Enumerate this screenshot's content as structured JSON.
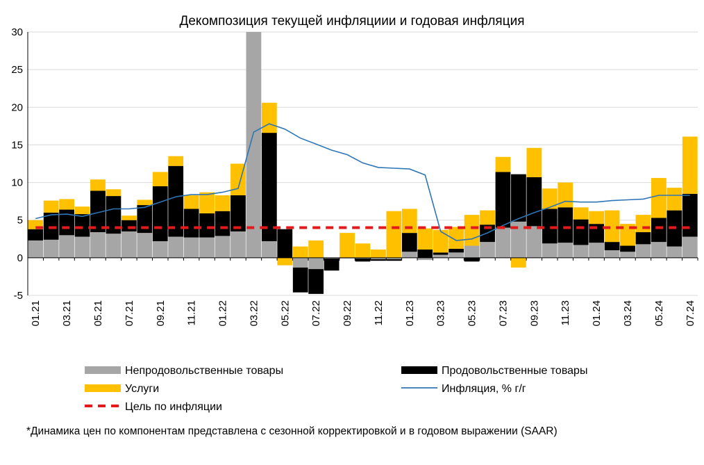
{
  "chart_data": {
    "type": "bar",
    "stacked": true,
    "title": "Декомпозиция текущей инфляциии и годовая инфляция",
    "footnote": "*Динамика цен по компонентам представлена с сезонной корректировкой и в годовом выражении (SAAR)",
    "ylim": [
      -5,
      30
    ],
    "yticks": [
      -5,
      0,
      5,
      10,
      15,
      20,
      25,
      30
    ],
    "grid": true,
    "legend_position": "bottom",
    "categories": [
      "01.21",
      "02.21",
      "03.21",
      "04.21",
      "05.21",
      "06.21",
      "07.21",
      "08.21",
      "09.21",
      "10.21",
      "11.21",
      "12.21",
      "01.22",
      "02.22",
      "03.22",
      "04.22",
      "05.22",
      "06.22",
      "07.22",
      "08.22",
      "09.22",
      "10.22",
      "11.22",
      "12.22",
      "01.23",
      "02.23",
      "03.23",
      "04.23",
      "05.23",
      "06.23",
      "07.23",
      "08.23",
      "09.23",
      "10.23",
      "11.23",
      "12.23",
      "01.24",
      "02.24",
      "03.24",
      "04.24",
      "05.24",
      "06.24",
      "07.24"
    ],
    "xtick_labels": [
      "01.21",
      "03.21",
      "05.21",
      "07.21",
      "09.21",
      "11.21",
      "01.22",
      "03.22",
      "05.22",
      "07.22",
      "09.22",
      "11.22",
      "01.23",
      "03.23",
      "05.23",
      "07.23",
      "09.23",
      "11.23",
      "01.24",
      "03.24",
      "05.24",
      "07.24"
    ],
    "series": [
      {
        "name": "Непродовольственные товары",
        "kind": "bar",
        "color": "#a6a6a6",
        "values": [
          2.3,
          2.4,
          3.0,
          2.8,
          3.4,
          3.2,
          3.5,
          3.3,
          2.2,
          2.8,
          2.7,
          2.7,
          2.9,
          3.5,
          30.0,
          2.2,
          0.0,
          -1.3,
          -1.5,
          -0.1,
          -0.1,
          -0.1,
          -0.2,
          -0.2,
          0.8,
          -0.3,
          0.4,
          0.7,
          1.6,
          2.1,
          4.0,
          4.8,
          4.2,
          1.9,
          2.0,
          1.7,
          2.0,
          1.0,
          0.8,
          1.8,
          2.1,
          1.5,
          2.8
        ]
      },
      {
        "name": "Продовольственные товары",
        "kind": "bar",
        "color": "#000000",
        "values": [
          1.5,
          3.6,
          3.4,
          3.0,
          5.5,
          5.0,
          1.5,
          3.7,
          7.3,
          9.4,
          3.8,
          3.2,
          3.3,
          4.8,
          0.0,
          14.4,
          3.8,
          -3.3,
          -3.3,
          -1.6,
          0.0,
          -0.4,
          -0.2,
          -0.2,
          2.5,
          1.1,
          0.3,
          0.5,
          -0.5,
          2.3,
          7.4,
          6.3,
          6.5,
          4.6,
          4.7,
          3.4,
          2.5,
          1.1,
          0.8,
          1.6,
          3.2,
          4.8,
          5.7
        ]
      },
      {
        "name": "Услуги",
        "kind": "bar",
        "color": "#ffc000",
        "values": [
          1.2,
          1.6,
          1.4,
          1.0,
          1.5,
          0.9,
          0.6,
          0.7,
          1.9,
          1.3,
          1.8,
          2.8,
          2.1,
          4.2,
          0.0,
          4.0,
          -1.0,
          1.5,
          2.3,
          0.0,
          3.3,
          1.9,
          1.1,
          6.2,
          3.2,
          2.8,
          3.0,
          2.9,
          4.1,
          1.9,
          2.0,
          -1.3,
          3.9,
          2.7,
          3.3,
          1.6,
          1.7,
          4.2,
          2.9,
          2.3,
          5.3,
          3.0,
          7.6
        ]
      },
      {
        "name": "Инфляция, % г/г",
        "kind": "line",
        "color": "#2e75b6",
        "values": [
          5.2,
          5.7,
          5.8,
          5.5,
          6.0,
          6.5,
          6.5,
          6.7,
          7.4,
          8.1,
          8.4,
          8.4,
          8.7,
          9.2,
          16.7,
          17.8,
          17.1,
          15.9,
          15.1,
          14.3,
          13.7,
          12.6,
          12.0,
          11.9,
          11.8,
          11.0,
          3.5,
          2.3,
          2.5,
          3.3,
          4.3,
          5.2,
          6.0,
          6.7,
          7.5,
          7.4,
          7.4,
          7.6,
          7.7,
          7.8,
          8.3,
          8.3,
          8.3
        ]
      },
      {
        "name": "Цель по инфляции",
        "kind": "dashed-line",
        "color": "#e31a1c",
        "values": [
          4,
          4,
          4,
          4,
          4,
          4,
          4,
          4,
          4,
          4,
          4,
          4,
          4,
          4,
          4,
          4,
          4,
          4,
          4,
          4,
          4,
          4,
          4,
          4,
          4,
          4,
          4,
          4,
          4,
          4,
          4,
          4,
          4,
          4,
          4,
          4,
          4,
          4,
          4,
          4,
          4,
          4,
          4
        ]
      }
    ],
    "legend": [
      {
        "label": "Непродовольственные товары",
        "swatch": "bar",
        "color": "#a6a6a6"
      },
      {
        "label": "Продовольственные товары",
        "swatch": "bar",
        "color": "#000000"
      },
      {
        "label": "Услуги",
        "swatch": "bar",
        "color": "#ffc000"
      },
      {
        "label": "Инфляция, % г/г",
        "swatch": "line",
        "color": "#2e75b6"
      },
      {
        "label": "Цель по инфляции",
        "swatch": "dashed",
        "color": "#e31a1c"
      }
    ]
  }
}
